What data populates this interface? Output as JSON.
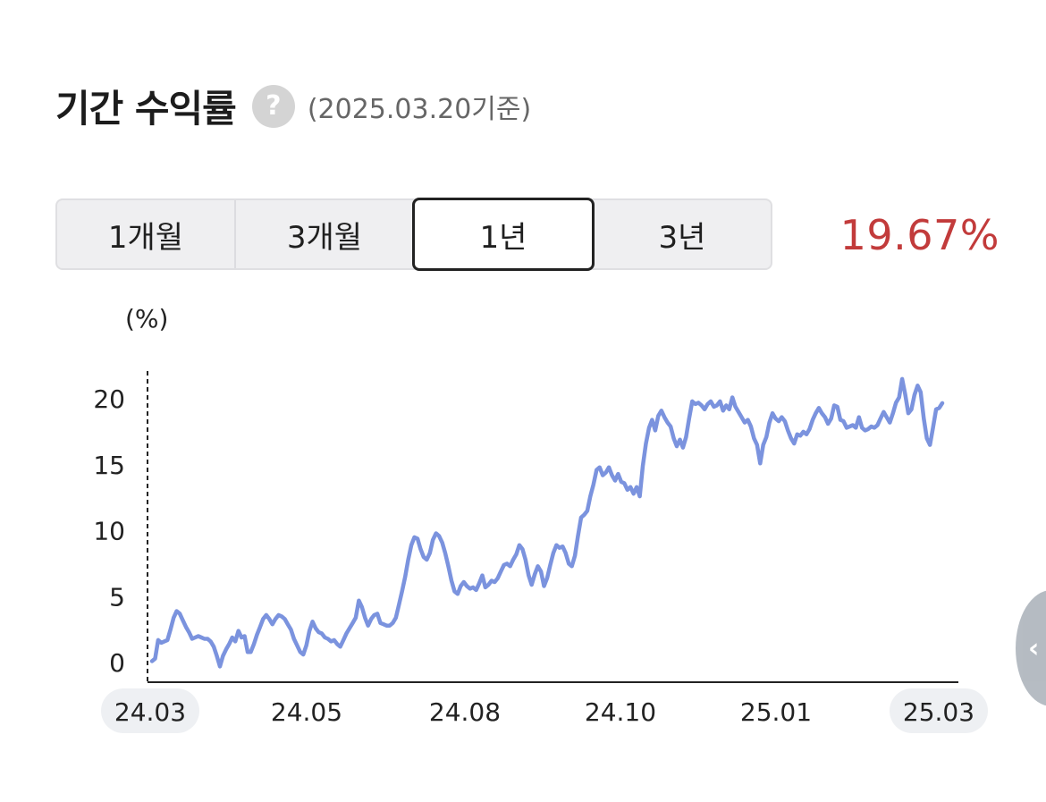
{
  "header": {
    "title": "기간 수익률",
    "help_icon": "?",
    "as_of": "(2025.03.20기준)"
  },
  "period_tabs": [
    {
      "label": "1개월",
      "active": false
    },
    {
      "label": "3개월",
      "active": false
    },
    {
      "label": "1년",
      "active": true
    },
    {
      "label": "3년",
      "active": false
    }
  ],
  "return_value": "19.67%",
  "side_handle_icon": "chevron-left-icon",
  "chart_data": {
    "type": "line",
    "y_unit_label": "(%)",
    "y_ticks": [
      0,
      5,
      10,
      15,
      20
    ],
    "ylim": [
      -1.5,
      22.5
    ],
    "x_tick_labels": [
      "24.03",
      "24.05",
      "24.08",
      "24.10",
      "25.01",
      "25.03"
    ],
    "x_tick_highlighted": [
      true,
      false,
      false,
      false,
      false,
      true
    ],
    "line_color": "#7b93de",
    "series": [
      {
        "values": [
          0.1,
          0.3,
          1.7,
          1.5,
          1.6,
          1.7,
          2.5,
          3.4,
          3.9,
          3.7,
          3.2,
          2.7,
          2.3,
          1.8,
          1.9,
          2.0,
          1.9,
          1.8,
          1.8,
          1.6,
          1.2,
          0.5,
          -0.3,
          0.5,
          1.0,
          1.4,
          1.9,
          1.6,
          2.4,
          1.9,
          2.0,
          0.8,
          0.8,
          1.4,
          2.1,
          2.7,
          3.3,
          3.6,
          3.3,
          2.9,
          3.3,
          3.6,
          3.5,
          3.3,
          2.9,
          2.5,
          1.8,
          1.3,
          0.8,
          0.6,
          1.3,
          2.4,
          3.1,
          2.6,
          2.3,
          2.2,
          1.9,
          1.8,
          1.6,
          1.7,
          1.4,
          1.2,
          1.7,
          2.2,
          2.6,
          3.0,
          3.4,
          4.7,
          4.2,
          3.4,
          2.8,
          3.3,
          3.6,
          3.7,
          3.0,
          2.9,
          2.8,
          2.8,
          3.0,
          3.4,
          4.4,
          5.4,
          6.5,
          7.8,
          8.9,
          9.5,
          9.4,
          8.6,
          8.0,
          7.8,
          8.3,
          9.3,
          9.8,
          9.6,
          9.1,
          8.3,
          7.3,
          6.2,
          5.4,
          5.2,
          5.8,
          6.1,
          5.8,
          5.6,
          5.7,
          5.5,
          6.0,
          6.6,
          5.7,
          5.9,
          6.2,
          6.1,
          6.4,
          6.9,
          7.4,
          7.5,
          7.3,
          7.8,
          8.2,
          8.9,
          8.6,
          7.8,
          6.6,
          5.9,
          6.7,
          7.3,
          6.9,
          5.8,
          6.4,
          7.4,
          8.3,
          8.9,
          8.7,
          8.8,
          8.3,
          7.5,
          7.3,
          8.1,
          9.6,
          11.0,
          11.2,
          11.5,
          12.6,
          13.5,
          14.6,
          14.8,
          14.2,
          14.4,
          14.8,
          14.2,
          13.8,
          14.3,
          13.7,
          13.6,
          13.1,
          13.3,
          12.8,
          13.3,
          12.6,
          14.9,
          16.6,
          17.8,
          18.4,
          17.6,
          18.7,
          19.1,
          18.6,
          18.2,
          17.9,
          17.0,
          16.4,
          16.9,
          16.3,
          17.1,
          18.5,
          19.8,
          19.6,
          19.7,
          19.5,
          19.2,
          19.6,
          19.8,
          19.4,
          19.5,
          19.8,
          19.1,
          19.5,
          19.2,
          20.1,
          19.4,
          19.0,
          18.6,
          18.2,
          18.4,
          17.9,
          17.0,
          16.5,
          15.1,
          16.5,
          17.1,
          18.2,
          18.9,
          18.5,
          18.3,
          18.6,
          18.3,
          17.6,
          17.0,
          16.6,
          17.3,
          17.2,
          17.5,
          17.3,
          17.7,
          18.4,
          18.9,
          19.3,
          18.9,
          18.6,
          18.1,
          18.5,
          19.5,
          19.4,
          18.4,
          18.3,
          17.8,
          17.9,
          18.0,
          17.8,
          18.6,
          17.8,
          17.6,
          17.7,
          17.9,
          17.8,
          18.0,
          18.5,
          19.0,
          18.6,
          18.2,
          18.9,
          19.7,
          20.1,
          21.5,
          20.3,
          18.9,
          19.2,
          20.3,
          21.0,
          20.5,
          18.5,
          17.0,
          16.5,
          17.8,
          19.2,
          19.3,
          19.67
        ]
      }
    ]
  }
}
